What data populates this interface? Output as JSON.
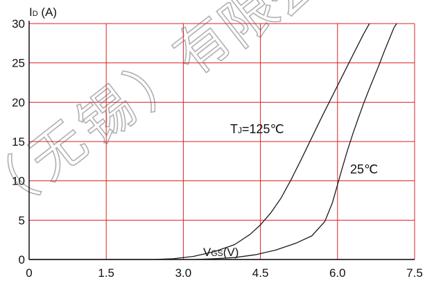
{
  "watermark": {
    "text": "（无锡）有限公司",
    "color": "#b0b0b0"
  },
  "chart_data": {
    "type": "line",
    "title": "",
    "ylabel": {
      "main": "I",
      "sub": "D",
      "rest": " (A)"
    },
    "xlabel": {
      "main": "V",
      "sub": "GS",
      "rest": "(V)"
    },
    "xlim": [
      0,
      7.5
    ],
    "ylim": [
      0,
      30
    ],
    "xticks": [
      "0",
      "1.5",
      "3.0",
      "4.5",
      "6.0",
      "7.5"
    ],
    "yticks": [
      "0",
      "5",
      "10",
      "15",
      "20",
      "25",
      "30"
    ],
    "grid": true,
    "grid_color": "#d92020",
    "line_color": "#1a1a1a",
    "series": [
      {
        "name": "125",
        "label": {
          "main": "T",
          "sub": "J",
          "rest": "=125℃"
        },
        "x": [
          0,
          2.4,
          2.8,
          3.2,
          3.6,
          4.0,
          4.3,
          4.5,
          4.7,
          4.9,
          5.1,
          5.3,
          5.5,
          5.7,
          5.9,
          6.1,
          6.3,
          6.5,
          6.62
        ],
        "y": [
          0,
          0,
          0.1,
          0.4,
          1.0,
          1.9,
          3.2,
          4.4,
          5.9,
          7.8,
          10.2,
          12.8,
          15.5,
          18.2,
          20.8,
          23.4,
          26.0,
          28.6,
          30
        ]
      },
      {
        "name": "25",
        "label": {
          "main": "25℃",
          "sub": "",
          "rest": ""
        },
        "x": [
          0,
          3.2,
          3.6,
          4.0,
          4.4,
          4.8,
          5.2,
          5.5,
          5.75,
          5.9,
          6.0,
          6.1,
          6.2,
          6.3,
          6.4,
          6.5,
          6.6,
          6.7,
          6.8,
          6.9,
          7.0,
          7.1,
          7.15
        ],
        "y": [
          0,
          0,
          0.1,
          0.25,
          0.6,
          1.2,
          2.1,
          3.0,
          4.8,
          7.2,
          9.5,
          11.8,
          14.0,
          16.0,
          17.9,
          19.7,
          21.4,
          23.0,
          24.6,
          26.3,
          27.9,
          29.5,
          30
        ]
      }
    ]
  }
}
